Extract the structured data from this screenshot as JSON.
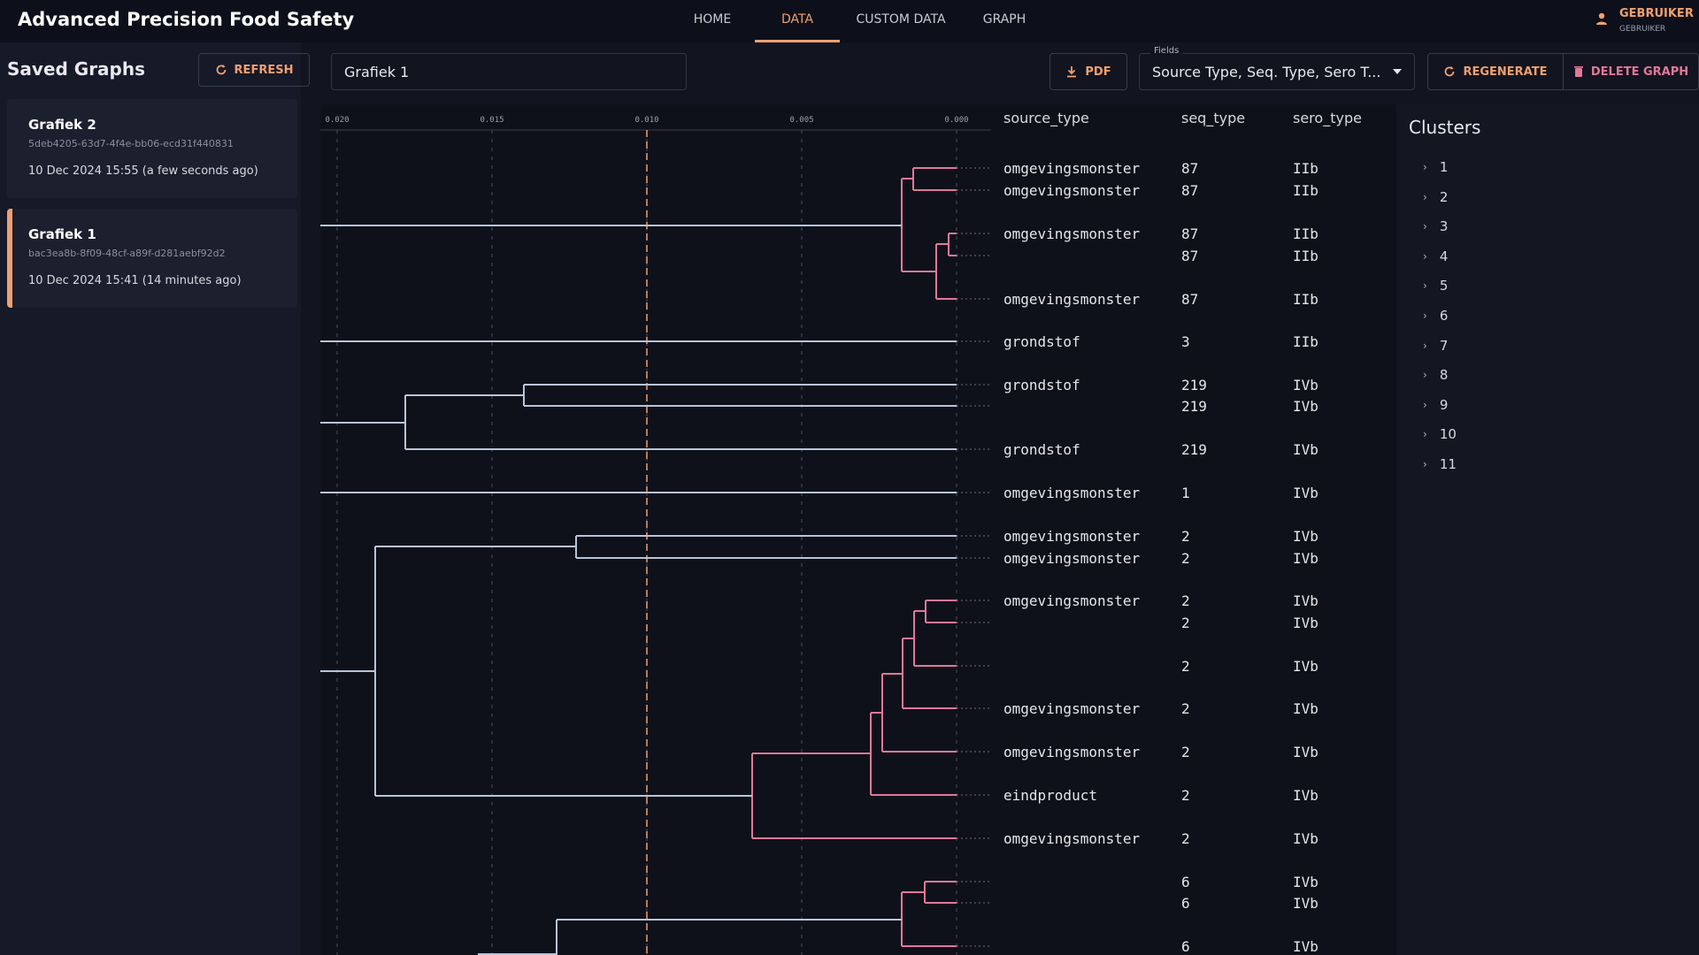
{
  "app": {
    "title": "Advanced Precision Food Safety"
  },
  "nav": {
    "tabs": [
      "HOME",
      "DATA",
      "CUSTOM DATA",
      "GRAPH"
    ],
    "active": "DATA"
  },
  "user": {
    "name": "GEBRUIKER",
    "role": "GEBRUIKER"
  },
  "sidebar": {
    "title": "Saved Graphs",
    "refresh_label": "REFRESH",
    "graphs": [
      {
        "name": "Grafiek 2",
        "id": "5deb4205-63d7-4f4e-bb06-ecd31f440831",
        "date": "10 Dec 2024 15:55 (a few seconds ago)",
        "active": false
      },
      {
        "name": "Grafiek 1",
        "id": "bac3ea8b-8f09-48cf-a89f-d281aebf92d2",
        "date": "10 Dec 2024 15:41 (14 minutes ago)",
        "active": true
      }
    ]
  },
  "toolbar": {
    "graph_name": "Grafiek 1",
    "pdf_label": "PDF",
    "fields_label": "Fields",
    "fields_value": "Source Type, Seq. Type, Sero T...",
    "regenerate_label": "REGENERATE",
    "delete_label": "DELETE GRAPH"
  },
  "columns": [
    "source_type",
    "seq_type",
    "sero_type"
  ],
  "axis_ticks": [
    "0.020",
    "0.015",
    "0.010",
    "0.005",
    "0.000"
  ],
  "colors": {
    "accent": "#f0a070",
    "cluster_highlight": "#e0789a",
    "branch": "#b8c4d8"
  },
  "rows": [
    {
      "source_type": "omgevingsmonster",
      "seq_type": "87",
      "sero_type": "IIb"
    },
    {
      "source_type": "omgevingsmonster",
      "seq_type": "87",
      "sero_type": "IIb"
    },
    {
      "source_type": "omgevingsmonster",
      "seq_type": "87",
      "sero_type": "IIb"
    },
    {
      "source_type": "",
      "seq_type": "87",
      "sero_type": "IIb"
    },
    {
      "source_type": "omgevingsmonster",
      "seq_type": "87",
      "sero_type": "IIb"
    },
    {
      "source_type": "grondstof",
      "seq_type": "3",
      "sero_type": "IIb"
    },
    {
      "source_type": "grondstof",
      "seq_type": "219",
      "sero_type": "IVb"
    },
    {
      "source_type": "",
      "seq_type": "219",
      "sero_type": "IVb"
    },
    {
      "source_type": "grondstof",
      "seq_type": "219",
      "sero_type": "IVb"
    },
    {
      "source_type": "omgevingsmonster",
      "seq_type": "1",
      "sero_type": "IVb"
    },
    {
      "source_type": "omgevingsmonster",
      "seq_type": "2",
      "sero_type": "IVb"
    },
    {
      "source_type": "omgevingsmonster",
      "seq_type": "2",
      "sero_type": "IVb"
    },
    {
      "source_type": "omgevingsmonster",
      "seq_type": "2",
      "sero_type": "IVb"
    },
    {
      "source_type": "",
      "seq_type": "2",
      "sero_type": "IVb"
    },
    {
      "source_type": "",
      "seq_type": "2",
      "sero_type": "IVb"
    },
    {
      "source_type": "omgevingsmonster",
      "seq_type": "2",
      "sero_type": "IVb"
    },
    {
      "source_type": "omgevingsmonster",
      "seq_type": "2",
      "sero_type": "IVb"
    },
    {
      "source_type": "eindproduct",
      "seq_type": "2",
      "sero_type": "IVb"
    },
    {
      "source_type": "omgevingsmonster",
      "seq_type": "2",
      "sero_type": "IVb"
    },
    {
      "source_type": "",
      "seq_type": "6",
      "sero_type": "IVb"
    },
    {
      "source_type": "",
      "seq_type": "6",
      "sero_type": "IVb"
    },
    {
      "source_type": "",
      "seq_type": "6",
      "sero_type": "IVb"
    }
  ],
  "clusters": {
    "title": "Clusters",
    "items": [
      "1",
      "2",
      "3",
      "4",
      "5",
      "6",
      "7",
      "8",
      "9",
      "10",
      "11"
    ]
  }
}
